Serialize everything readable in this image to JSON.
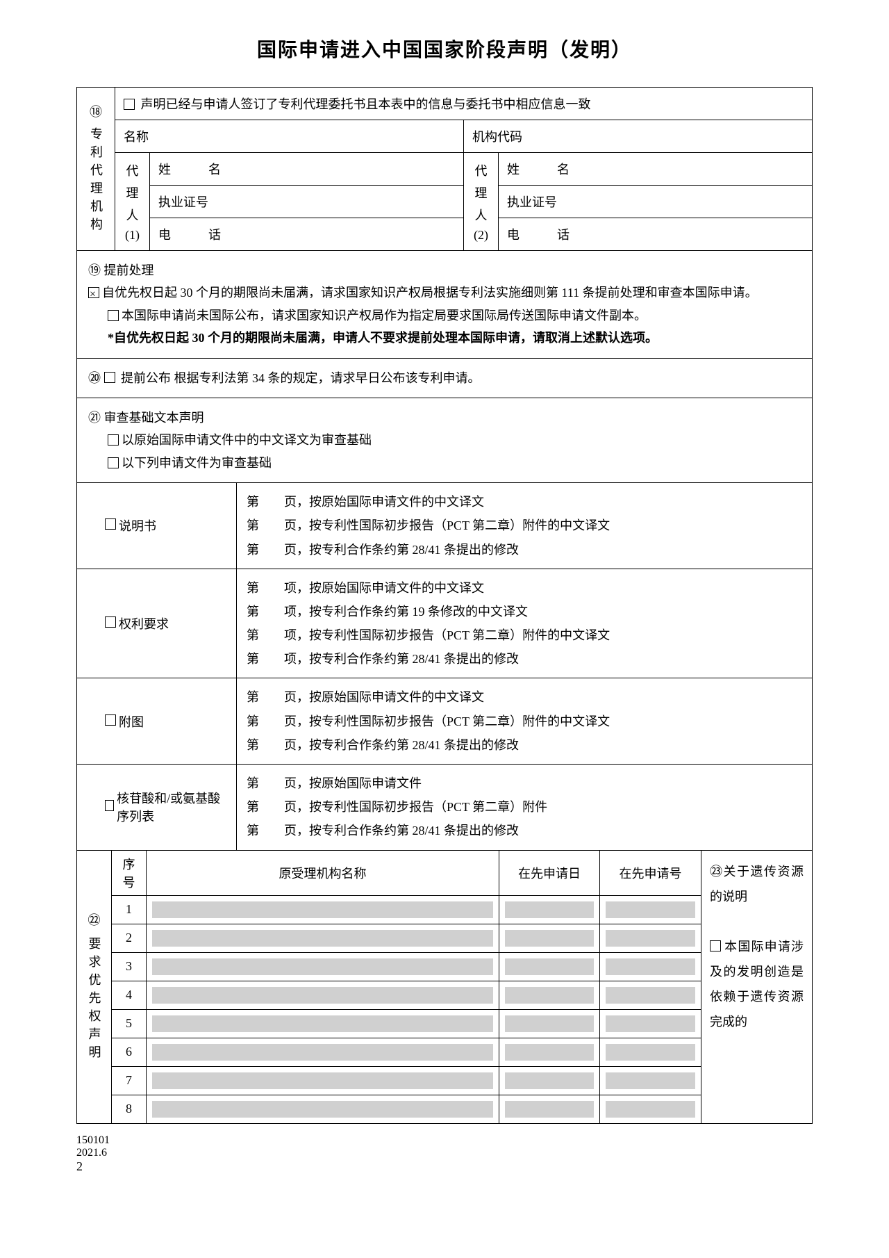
{
  "title": "国际申请进入中国国家阶段声明（发明）",
  "section18": {
    "num": "⑱",
    "label": "专利代理机构",
    "declaration": "声明已经与申请人签订了专利代理委托书且本表中的信息与委托书中相应信息一致",
    "nameLabel": "名称",
    "codeLabel": "机构代码",
    "agent1": {
      "head": "代理人(1)",
      "xm": "姓　名",
      "license": "执业证号",
      "phone": "电　话"
    },
    "agent2": {
      "head": "代理人(2)",
      "xm": "姓　名",
      "license": "执业证号",
      "phone": "电　话"
    }
  },
  "section19": {
    "num": "⑲",
    "title": "提前处理",
    "opt1": "自优先权日起 30 个月的期限尚未届满，请求国家知识产权局根据专利法实施细则第 111 条提前处理和审查本国际申请。",
    "opt2": "本国际申请尚未国际公布，请求国家知识产权局作为指定局要求国际局传送国际申请文件副本。",
    "note": "*自优先权日起 30 个月的期限尚未届满，申请人不要求提前处理本国际申请，请取消上述默认选项。"
  },
  "section20": {
    "num": "⑳",
    "text": "提前公布 根据专利法第 34 条的规定，请求早日公布该专利申请。"
  },
  "section21": {
    "num": "㉑",
    "title": "审查基础文本声明",
    "opt1": "以原始国际申请文件中的中文译文为审查基础",
    "opt2": "以下列申请文件为审查基础"
  },
  "docs": {
    "spec": {
      "label": "说明书",
      "lines": [
        "第　　页，按原始国际申请文件的中文译文",
        "第　　页，按专利性国际初步报告（PCT 第二章）附件的中文译文",
        "第　　页，按专利合作条约第 28/41 条提出的修改"
      ]
    },
    "claims": {
      "label": "权利要求",
      "lines": [
        "第　　项，按原始国际申请文件的中文译文",
        "第　　项，按专利合作条约第 19 条修改的中文译文",
        "第　　项，按专利性国际初步报告（PCT 第二章）附件的中文译文",
        "第　　项，按专利合作条约第 28/41 条提出的修改"
      ]
    },
    "drawings": {
      "label": "附图",
      "lines": [
        "第　　页，按原始国际申请文件的中文译文",
        "第　　页，按专利性国际初步报告（PCT 第二章）附件的中文译文",
        "第　　页，按专利合作条约第 28/41 条提出的修改"
      ]
    },
    "seq": {
      "label": "核苷酸和/或氨基酸序列表",
      "lines": [
        "第　　页，按原始国际申请文件",
        "第　　页，按专利性国际初步报告（PCT 第二章）附件",
        "第　　页，按专利合作条约第 28/41 条提出的修改"
      ]
    }
  },
  "section22": {
    "num": "㉒",
    "label": "要求优先权声明",
    "headers": {
      "seq": "序号",
      "org": "原受理机构名称",
      "date": "在先申请日",
      "appnum": "在先申请号"
    },
    "rows": [
      "1",
      "2",
      "3",
      "4",
      "5",
      "6",
      "7",
      "8"
    ]
  },
  "section23": {
    "num": "㉓",
    "title": "关于遗传资源的说明",
    "text": "本国际申请涉及的发明创造是依赖于遗传资源完成的"
  },
  "footer": {
    "code": "150101",
    "date": "2021.6",
    "page": "2"
  },
  "colors": {
    "border": "#000000",
    "greyFill": "#d0d0d0",
    "background": "#ffffff",
    "text": "#000000"
  }
}
